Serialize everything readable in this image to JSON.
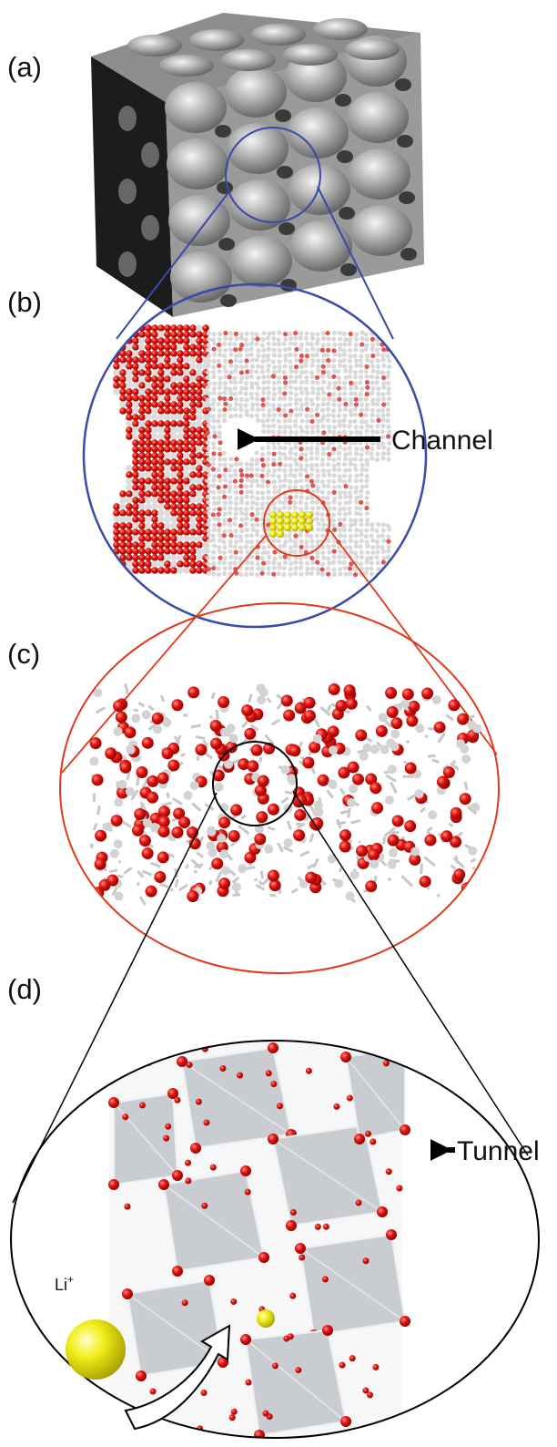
{
  "panels": [
    {
      "label": "(a)"
    },
    {
      "label": "(b)",
      "annotation": "Channel"
    },
    {
      "label": "(c)"
    },
    {
      "label": "(d)",
      "annotation": "Tunnel",
      "ion": {
        "symbol": "Li",
        "charge": "+"
      }
    }
  ]
}
